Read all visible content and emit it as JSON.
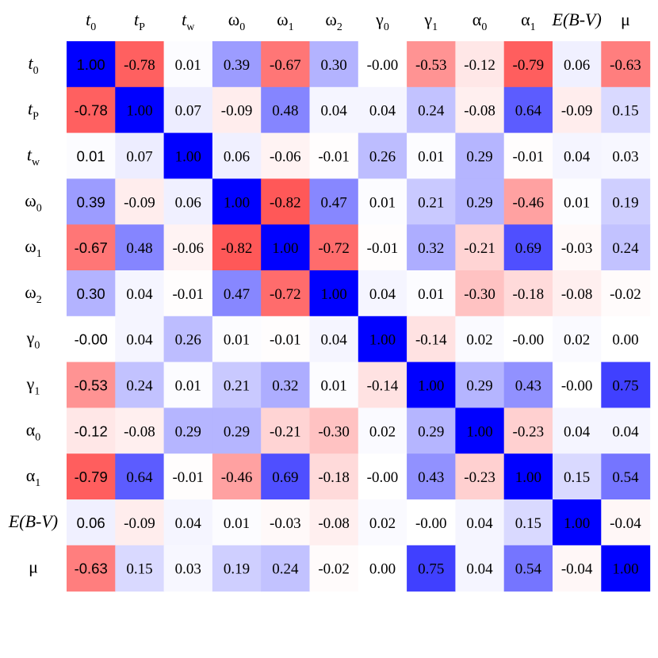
{
  "chart_data": {
    "type": "heatmap",
    "title": "",
    "xlabel": "",
    "ylabel": "",
    "labels": [
      {
        "base": "t",
        "sub": "0",
        "italic": true
      },
      {
        "base": "t",
        "sub": "P",
        "italic": true
      },
      {
        "base": "t",
        "sub": "w",
        "italic": true
      },
      {
        "base": "ω",
        "sub": "0",
        "italic": false
      },
      {
        "base": "ω",
        "sub": "1",
        "italic": false
      },
      {
        "base": "ω",
        "sub": "2",
        "italic": false
      },
      {
        "base": "γ",
        "sub": "0",
        "italic": false
      },
      {
        "base": "γ",
        "sub": "1",
        "italic": false
      },
      {
        "base": "α",
        "sub": "0",
        "italic": false
      },
      {
        "base": "α",
        "sub": "1",
        "italic": false
      },
      {
        "base": "E(B-V)",
        "sub": "",
        "italic": true
      },
      {
        "base": "μ",
        "sub": "",
        "italic": false
      }
    ],
    "values": [
      [
        1.0,
        -0.78,
        0.01,
        0.39,
        -0.67,
        0.3,
        -0.0,
        -0.53,
        -0.12,
        -0.79,
        0.06,
        -0.63
      ],
      [
        -0.78,
        1.0,
        0.07,
        -0.09,
        0.48,
        0.04,
        0.04,
        0.24,
        -0.08,
        0.64,
        -0.09,
        0.15
      ],
      [
        0.01,
        0.07,
        1.0,
        0.06,
        -0.06,
        -0.01,
        0.26,
        0.01,
        0.29,
        -0.01,
        0.04,
        0.03
      ],
      [
        0.39,
        -0.09,
        0.06,
        1.0,
        -0.82,
        0.47,
        0.01,
        0.21,
        0.29,
        -0.46,
        0.01,
        0.19
      ],
      [
        -0.67,
        0.48,
        -0.06,
        -0.82,
        1.0,
        -0.72,
        -0.01,
        0.32,
        -0.21,
        0.69,
        -0.03,
        0.24
      ],
      [
        0.3,
        0.04,
        -0.01,
        0.47,
        -0.72,
        1.0,
        0.04,
        0.01,
        -0.3,
        -0.18,
        -0.08,
        -0.02
      ],
      [
        -0.0,
        0.04,
        0.26,
        0.01,
        -0.01,
        0.04,
        1.0,
        -0.14,
        0.02,
        -0.0,
        0.02,
        0.0
      ],
      [
        -0.53,
        0.24,
        0.01,
        0.21,
        0.32,
        0.01,
        -0.14,
        1.0,
        0.29,
        0.43,
        -0.0,
        0.75
      ],
      [
        -0.12,
        -0.08,
        0.29,
        0.29,
        -0.21,
        -0.3,
        0.02,
        0.29,
        1.0,
        -0.23,
        0.04,
        0.04
      ],
      [
        -0.79,
        0.64,
        -0.01,
        -0.46,
        0.69,
        -0.18,
        -0.0,
        0.43,
        -0.23,
        1.0,
        0.15,
        0.54
      ],
      [
        0.06,
        -0.09,
        0.04,
        0.01,
        -0.03,
        -0.08,
        0.02,
        -0.0,
        0.04,
        0.15,
        1.0,
        -0.04
      ],
      [
        -0.63,
        0.15,
        0.03,
        0.19,
        0.24,
        -0.02,
        0.0,
        0.75,
        0.04,
        0.54,
        -0.04,
        1.0
      ]
    ],
    "value_format": "2 decimals",
    "colormap": {
      "negative": "#ff3333",
      "zero": "#ffffff",
      "positive": "#0000ff"
    },
    "grid": false,
    "legend": "none"
  }
}
